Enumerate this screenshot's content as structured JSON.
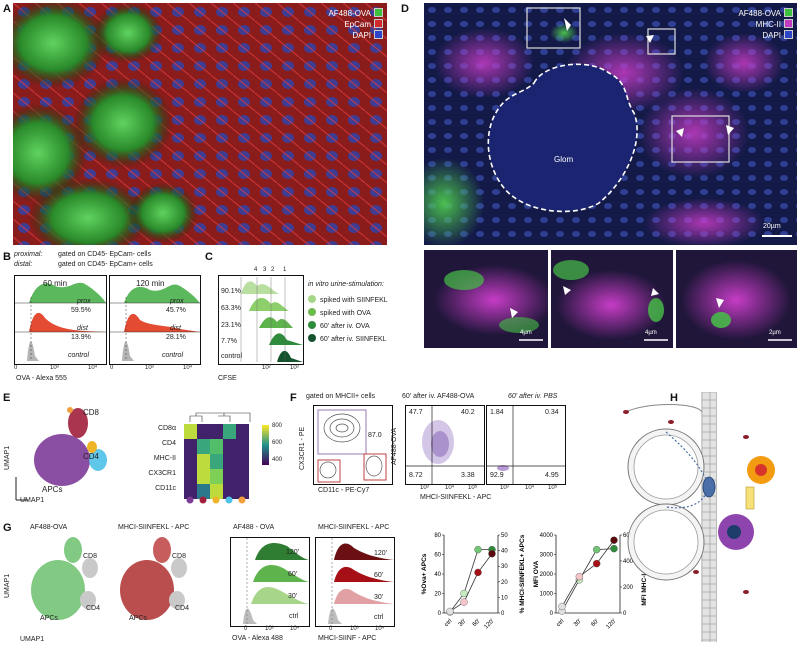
{
  "panels": {
    "A": {
      "label": "A",
      "legend": [
        "AF488-OVA",
        "EpCam",
        "DAPI"
      ],
      "legend_colors": [
        "#3ec13e",
        "#d12a2a",
        "#2e45c9"
      ]
    },
    "B": {
      "label": "B",
      "header1": "proximal:",
      "header1_text": "gated on CD45- EpCam- cells",
      "header2": "distal:",
      "header2_text": "gated on CD45- EpCam+ cells",
      "plots": [
        {
          "time": "60 min",
          "prox_label": "prox",
          "prox_pct": "59.5%",
          "dist_label": "dist",
          "dist_pct": "13.9%",
          "control": "control"
        },
        {
          "time": "120 min",
          "prox_label": "prox",
          "prox_pct": "45.7%",
          "dist_label": "dist",
          "dist_pct": "28.1%",
          "control": "control"
        }
      ],
      "xlabel": "OVA - Alexa 555",
      "ticks": [
        "0",
        "10³",
        "10⁴"
      ]
    },
    "C": {
      "label": "C",
      "peaks": [
        "4",
        "3",
        "2",
        "1"
      ],
      "pcts": [
        "90.1%",
        "63.3%",
        "23.1%",
        "7.7%"
      ],
      "control": "control",
      "xlabel": "CFSE",
      "ticks": [
        "10²",
        "10³"
      ],
      "legend_title": "in vitro urine-stimulation:",
      "legend_items": [
        "spiked with SIINFEKL",
        "spiked with OVA",
        "60' after iv. OVA",
        "60' after iv. SIINFEKL"
      ],
      "legend_colors": [
        "#a7d68a",
        "#6cbb4e",
        "#2e8b3c",
        "#14532d"
      ]
    },
    "D": {
      "label": "D",
      "legend": [
        "AF488-OVA",
        "MHC-II",
        "DAPI"
      ],
      "legend_colors": [
        "#3ec13e",
        "#c23cc2",
        "#2e45c9"
      ],
      "glom": "Glom",
      "scale": "20µm",
      "insets_scale": [
        "4µm",
        "4µm",
        "2µm"
      ]
    },
    "E": {
      "label": "E",
      "umap_labels": [
        "CD8",
        "CD4",
        "APCs"
      ],
      "ylabel": "UMAP1",
      "xlabel": "UMAP1",
      "heat_rows": [
        "CD8α",
        "CD4",
        "MHC-II",
        "CX3CR1",
        "CD11c"
      ],
      "heat_values": [
        [
          0.9,
          0.1,
          0.1,
          0.6,
          0.1
        ],
        [
          0.1,
          0.6,
          0.7,
          0.1,
          0.1
        ],
        [
          0.1,
          0.9,
          0.6,
          0.1,
          0.1
        ],
        [
          0.1,
          0.9,
          0.8,
          0.1,
          0.1
        ],
        [
          0.1,
          0.4,
          0.9,
          0.1,
          0.1
        ]
      ],
      "colorbar_ticks": [
        "800",
        "600",
        "400"
      ],
      "dot_colors": [
        "#7d3c98",
        "#a01f3c",
        "#f0b429",
        "#4fc1e9",
        "#f2a03d"
      ]
    },
    "F": {
      "label": "F",
      "gate_title": "gated on MHCII+ cells",
      "gate_pct": "87.0",
      "gate_ylabel": "CX3CR1 - PE",
      "gate_xlabel": "CD11c - PE-Cy7",
      "ova_title": "60' after iv. AF488-OVA",
      "pbs_title": "60' after iv. PBS",
      "ova_quads": [
        "47.7",
        "40.2",
        "8.72",
        "3.38"
      ],
      "pbs_quads": [
        "1.84",
        "0.34",
        "92.9",
        "4.95"
      ],
      "ylabel": "AF488-OVA",
      "xlabel": "MHCI-SIINFEKL - APC",
      "ticks": [
        "0",
        "10³",
        "10⁴",
        "10⁵"
      ]
    },
    "G": {
      "label": "G",
      "umap_titles": [
        "AF488-OVA",
        "MHCI-SIINFEKL - APC"
      ],
      "umap_labels": [
        "CD8",
        "CD4",
        "APCs"
      ],
      "ylabel": "UMAP1",
      "xlabel": "UMAP1",
      "hist_titles": [
        "AF488 - OVA",
        "MHCI-SIINFEKL - APC"
      ],
      "hist_rows": [
        "120'",
        "60'",
        "30'",
        "ctrl"
      ],
      "hist_xlabels": [
        "OVA - Alexa 488",
        "MHCI-SIINF - APC"
      ],
      "hist_ticks": [
        "0",
        "10³",
        "10⁴"
      ]
    },
    "H": {
      "label": "H"
    }
  },
  "chart_data": [
    {
      "type": "line",
      "title": "",
      "categories": [
        "ctrl",
        "30'",
        "60'",
        "120'"
      ],
      "ylabel": "%Ova+ APCs",
      "y2label": "% MHCI-SIINFEKL+ APCs",
      "ylim": [
        0,
        80
      ],
      "y2lim": [
        0,
        50
      ],
      "yticks": [
        "0",
        "20",
        "40",
        "60",
        "80"
      ],
      "y2ticks": [
        "0",
        "10",
        "20",
        "30",
        "40",
        "50"
      ],
      "series": [
        {
          "name": "%Ova+ APCs",
          "values": [
            1,
            20,
            65,
            65
          ],
          "color": "#74c476"
        },
        {
          "name": "% MHCI-SIINFEKL+ APCs",
          "values": [
            1,
            7,
            26,
            38
          ],
          "color": "#a50f15"
        }
      ]
    },
    {
      "type": "line",
      "title": "",
      "categories": [
        "ctrl",
        "30'",
        "60'",
        "120'"
      ],
      "ylabel": "MFI OVA",
      "y2label": "MFI MHC-I SIINFEKL",
      "ylim": [
        0,
        4000
      ],
      "y2lim": [
        0,
        600
      ],
      "yticks": [
        "0",
        "1000",
        "2000",
        "3000",
        "4000"
      ],
      "y2ticks": [
        "0",
        "200",
        "400",
        "600"
      ],
      "series": [
        {
          "name": "MFI OVA",
          "values": [
            100,
            1700,
            3250,
            3300
          ],
          "color": "#74c476"
        },
        {
          "name": "MFI MHC-I SIINFEKL",
          "values": [
            50,
            280,
            380,
            560
          ],
          "color": "#a50f15"
        }
      ]
    }
  ]
}
